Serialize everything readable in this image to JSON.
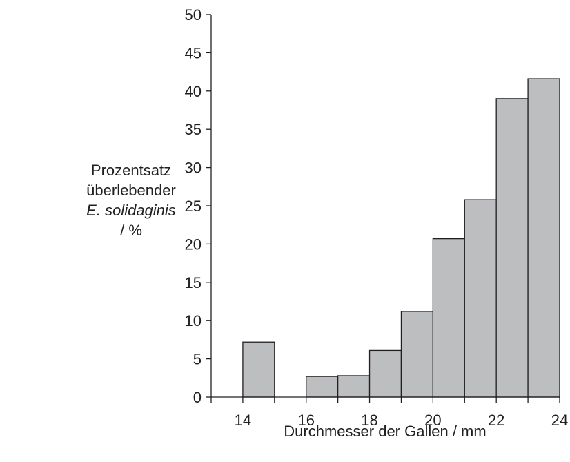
{
  "chart_data": {
    "type": "bar",
    "title": "",
    "ylabel_lines": [
      "Prozentsatz",
      "überlebender"
    ],
    "ylabel_species": "E. solidaginis",
    "ylabel_unit": "/ %",
    "xlabel": "Durchmesser der Gallen / mm",
    "xlim": [
      13,
      24
    ],
    "ylim": [
      0,
      50
    ],
    "xticks": [
      14,
      16,
      18,
      20,
      22,
      24
    ],
    "yticks": [
      0,
      5,
      10,
      15,
      20,
      25,
      30,
      35,
      40,
      45,
      50
    ],
    "bin_width": 1,
    "bins": [
      {
        "x_start": 14,
        "x_end": 15,
        "value": 7.2
      },
      {
        "x_start": 15,
        "x_end": 16,
        "value": 0
      },
      {
        "x_start": 16,
        "x_end": 17,
        "value": 2.7
      },
      {
        "x_start": 17,
        "x_end": 18,
        "value": 2.8
      },
      {
        "x_start": 18,
        "x_end": 19,
        "value": 6.1
      },
      {
        "x_start": 19,
        "x_end": 20,
        "value": 11.2
      },
      {
        "x_start": 20,
        "x_end": 21,
        "value": 20.7
      },
      {
        "x_start": 21,
        "x_end": 22,
        "value": 25.8
      },
      {
        "x_start": 22,
        "x_end": 23,
        "value": 39.0
      },
      {
        "x_start": 23,
        "x_end": 24,
        "value": 41.6
      }
    ],
    "bar_color": "#bcbec0",
    "edge_color": "#231f20",
    "grid": false
  }
}
